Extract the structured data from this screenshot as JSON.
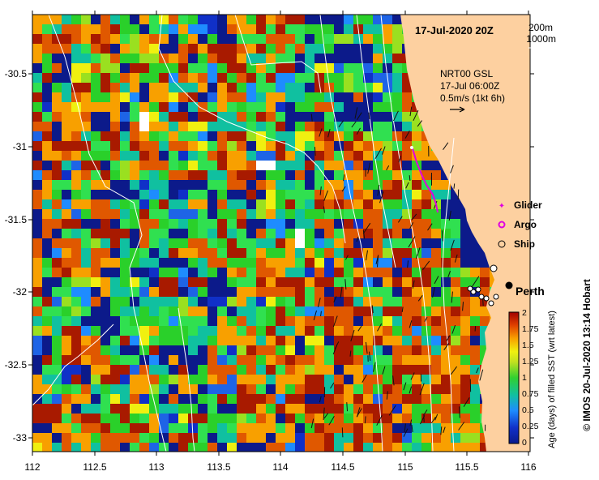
{
  "title": "17-Jul-2020 20Z",
  "depth_contours": [
    "200m",
    "1000m"
  ],
  "current_vectors": {
    "source": "NRT00 GSL",
    "time": "17-Jul 06:00Z",
    "scale_label": "0.5m/s (1kt 6h)"
  },
  "legend": {
    "items": [
      {
        "label": "Glider",
        "symbol": "magenta-star",
        "color": "#e000e0"
      },
      {
        "label": "Argo",
        "symbol": "magenta-ring",
        "color": "#e000e0"
      },
      {
        "label": "Ship",
        "symbol": "black-circle",
        "color": "#000000"
      }
    ]
  },
  "city_label": "Perth",
  "axes": {
    "x_ticks": [
      "112",
      "112.5",
      "113",
      "113.5",
      "114",
      "114.5",
      "115",
      "115.5",
      "116"
    ],
    "y_ticks": [
      "-30.5",
      "-31",
      "-31.5",
      "-32",
      "-32.5",
      "-33"
    ],
    "xlim": [
      112,
      116
    ],
    "ylim": [
      -33.1,
      -30.1
    ]
  },
  "colorbar": {
    "label": "Age (days) of filled SST (wrt latest)",
    "ticks": [
      "2",
      "1.75",
      "1.5",
      "1.25",
      "1",
      "0.75",
      "0.5",
      "0.25",
      "0"
    ],
    "range": [
      0,
      2
    ]
  },
  "credit": "© IMOS 20-Jul-2020 13:14 Hobart",
  "colors": {
    "land": "#fdd0a0",
    "low": "#0a1a8c",
    "mid": "#2ad02a",
    "high": "#a81a00"
  }
}
